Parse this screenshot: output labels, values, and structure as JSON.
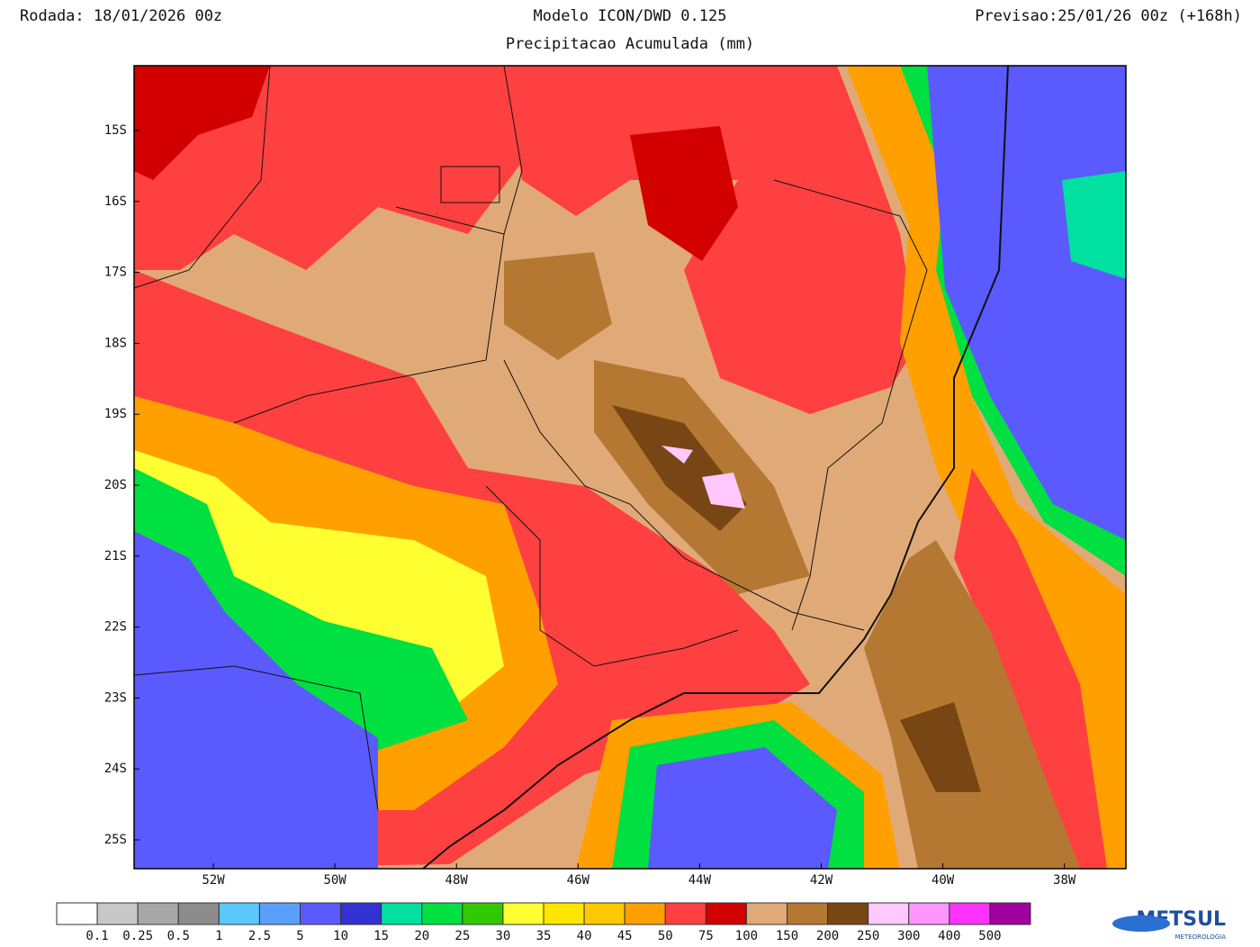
{
  "header": {
    "left": "Rodada: 18/01/2026 00z",
    "center": "Modelo ICON/DWD 0.125",
    "right": "Previsao:25/01/26 00z (+168h)",
    "subtitle": "Precipitacao Acumulada (mm)"
  },
  "map": {
    "lat_labels": [
      "15S",
      "16S",
      "17S",
      "18S",
      "19S",
      "20S",
      "21S",
      "22S",
      "23S",
      "24S",
      "25S"
    ],
    "lon_labels": [
      "52W",
      "50W",
      "48W",
      "46W",
      "44W",
      "42W",
      "40W",
      "38W"
    ]
  },
  "colorbar": {
    "colors": [
      "#ffffff",
      "#c8c8c8",
      "#a8a8a8",
      "#8c8c8c",
      "#5ac8fa",
      "#5aa0fa",
      "#5a5aff",
      "#3232d2",
      "#00e0a0",
      "#00e040",
      "#32c800",
      "#ffff32",
      "#ffe600",
      "#ffc800",
      "#ffa000",
      "#ff4040",
      "#d20000",
      "#e0aa78",
      "#b47832",
      "#784614",
      "#ffc8ff",
      "#ff96ff",
      "#ff32ff",
      "#a000a0"
    ],
    "labels": [
      0.1,
      0.25,
      0.5,
      1,
      2.5,
      5,
      10,
      15,
      20,
      25,
      30,
      35,
      40,
      45,
      50,
      75,
      100,
      150,
      200,
      250,
      300,
      400,
      500
    ]
  },
  "logo": {
    "name": "METSUL",
    "tagline": "METEOROLOGIA"
  }
}
